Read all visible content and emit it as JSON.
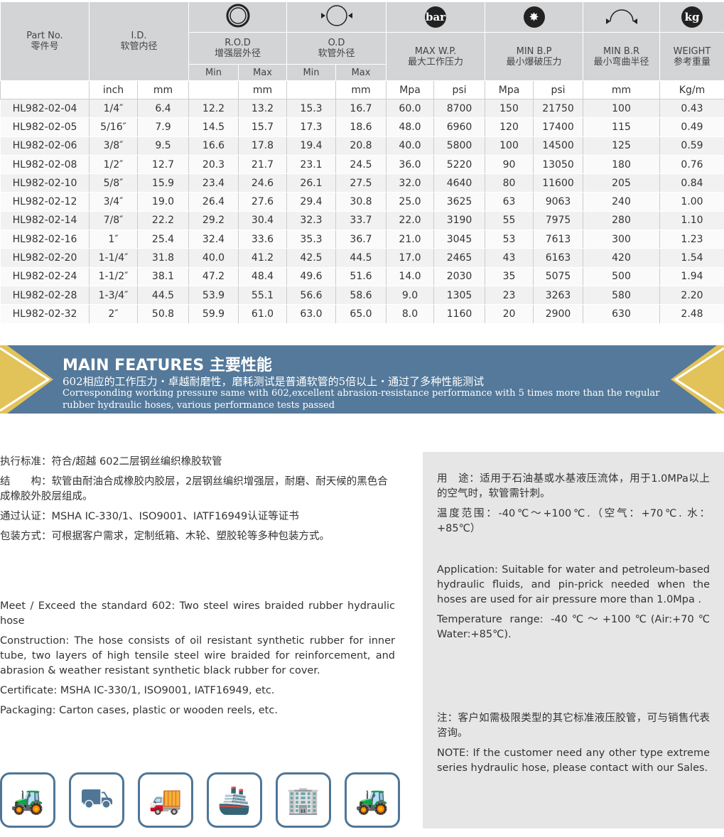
{
  "table": {
    "head": {
      "part": "Part No.",
      "part_cn": "零件号",
      "id": "I.D.",
      "id_cn": "软管内径",
      "rod": "R.O.D",
      "rod_cn": "增强层外径",
      "od": "O.D",
      "od_cn": "软管外径",
      "wp": "MAX W.P.",
      "wp_cn": "最大工作压力",
      "bp": "MIN B.P",
      "bp_cn": "最小爆破压力",
      "br": "MIN B.R",
      "br_cn": "最小弯曲半径",
      "wt": "WEIGHT",
      "wt_cn": "参考重量",
      "min": "Min",
      "max": "Max",
      "bar_icon": "bar",
      "kg_icon": "kg"
    },
    "units": [
      "",
      "inch",
      "mm",
      "",
      "mm",
      "",
      "mm",
      "Mpa",
      "psi",
      "Mpa",
      "psi",
      "mm",
      "Kg/m"
    ],
    "rows": [
      [
        "HL982-02-04",
        "1/4″",
        "6.4",
        "12.2",
        "13.2",
        "15.3",
        "16.7",
        "60.0",
        "8700",
        "150",
        "21750",
        "100",
        "0.43"
      ],
      [
        "HL982-02-05",
        "5/16″",
        "7.9",
        "14.5",
        "15.7",
        "17.3",
        "18.6",
        "48.0",
        "6960",
        "120",
        "17400",
        "115",
        "0.49"
      ],
      [
        "HL982-02-06",
        "3/8″",
        "9.5",
        "16.6",
        "17.8",
        "19.4",
        "20.8",
        "40.0",
        "5800",
        "100",
        "14500",
        "125",
        "0.59"
      ],
      [
        "HL982-02-08",
        "1/2″",
        "12.7",
        "20.3",
        "21.7",
        "23.1",
        "24.5",
        "36.0",
        "5220",
        "90",
        "13050",
        "180",
        "0.76"
      ],
      [
        "HL982-02-10",
        "5/8″",
        "15.9",
        "23.4",
        "24.6",
        "26.1",
        "27.5",
        "32.0",
        "4640",
        "80",
        "11600",
        "205",
        "0.84"
      ],
      [
        "HL982-02-12",
        "3/4″",
        "19.0",
        "26.4",
        "27.6",
        "29.4",
        "30.8",
        "25.0",
        "3625",
        "63",
        "9063",
        "240",
        "1.00"
      ],
      [
        "HL982-02-14",
        "7/8″",
        "22.2",
        "29.2",
        "30.4",
        "32.3",
        "33.7",
        "22.0",
        "3190",
        "55",
        "7975",
        "280",
        "1.10"
      ],
      [
        "HL982-02-16",
        "1″",
        "25.4",
        "32.4",
        "33.6",
        "35.3",
        "36.7",
        "21.0",
        "3045",
        "53",
        "7613",
        "300",
        "1.23"
      ],
      [
        "HL982-02-20",
        "1-1/4″",
        "31.8",
        "40.0",
        "41.2",
        "42.5",
        "44.5",
        "17.0",
        "2465",
        "43",
        "6163",
        "420",
        "1.54"
      ],
      [
        "HL982-02-24",
        "1-1/2″",
        "38.1",
        "47.2",
        "48.4",
        "49.6",
        "51.6",
        "14.0",
        "2030",
        "35",
        "5075",
        "500",
        "1.94"
      ],
      [
        "HL982-02-28",
        "1-3/4″",
        "44.5",
        "53.9",
        "55.1",
        "56.6",
        "58.6",
        "9.0",
        "1305",
        "23",
        "3263",
        "580",
        "2.20"
      ],
      [
        "HL982-02-32",
        "2″",
        "50.8",
        "59.9",
        "61.0",
        "63.0",
        "65.0",
        "8.0",
        "1160",
        "20",
        "2900",
        "630",
        "2.48"
      ]
    ]
  },
  "banner": {
    "title": "MAIN FEATURES 主要性能",
    "cn": "602相应的工作压力・卓越耐磨性，磨耗测试是普通软管的5倍以上・通过了多种性能测试",
    "en": "Corresponding working pressure same with 602,excellent abrasion-resistance performance with 5 times more than the regular rubber hydraulic hoses, various performance tests passed",
    "color": "#54799a",
    "accent": "#e2c35a"
  },
  "left": {
    "cn": [
      "执行标准：符合/超越 602二层钢丝编织橡胶软管",
      "结　　构：软管由耐油合成橡胶内胶层，2层钢丝编织增强层，耐磨、耐天候的黑色合成橡胶外胶层组成。",
      "通过认证：MSHA IC-330/1、ISO9001、IATF16949认证等证书",
      "包装方式：可根据客户需求，定制纸箱、木轮、塑胶轮等多种包装方式。"
    ],
    "en": [
      "Meet / Exceed the standard 602: Two steel wires braided rubber hydraulic hose",
      "Construction: The hose consists of oil resistant synthetic rubber for inner tube, two layers of high tensile steel wire braided for reinforcement, and abrasion & weather resistant synthetic black rubber for cover.",
      "Certificate: MSHA IC-330/1, ISO9001, IATF16949, etc.",
      "Packaging: Carton cases, plastic or wooden reels, etc."
    ]
  },
  "right": {
    "cn": [
      "用　途：适用于石油基或水基液压流体，用于1.0MPa以上的空气时，软管需针刺。",
      "温度范围：-40℃～+100℃.（空气：+70℃. 水：+85℃）"
    ],
    "en": [
      "Application: Suitable for water and petroleum-based hydraulic fluids, and pin-prick needed when the hoses are used for air pressure more than 1.0Mpa .",
      "Temperature range: -40℃～+100℃(Air:+70℃ Water:+85℃)."
    ],
    "note_cn": "注：客户如需极限类型的其它标准液压胶管，可与销售代表咨询。",
    "note_en": "NOTE: If the customer need any other type extreme series hydraulic hose, please contact with our Sales."
  },
  "applications": [
    "excavator-icon",
    "loader-icon",
    "mining-truck-icon",
    "ship-icon",
    "building-icon",
    "tractor-icon"
  ]
}
